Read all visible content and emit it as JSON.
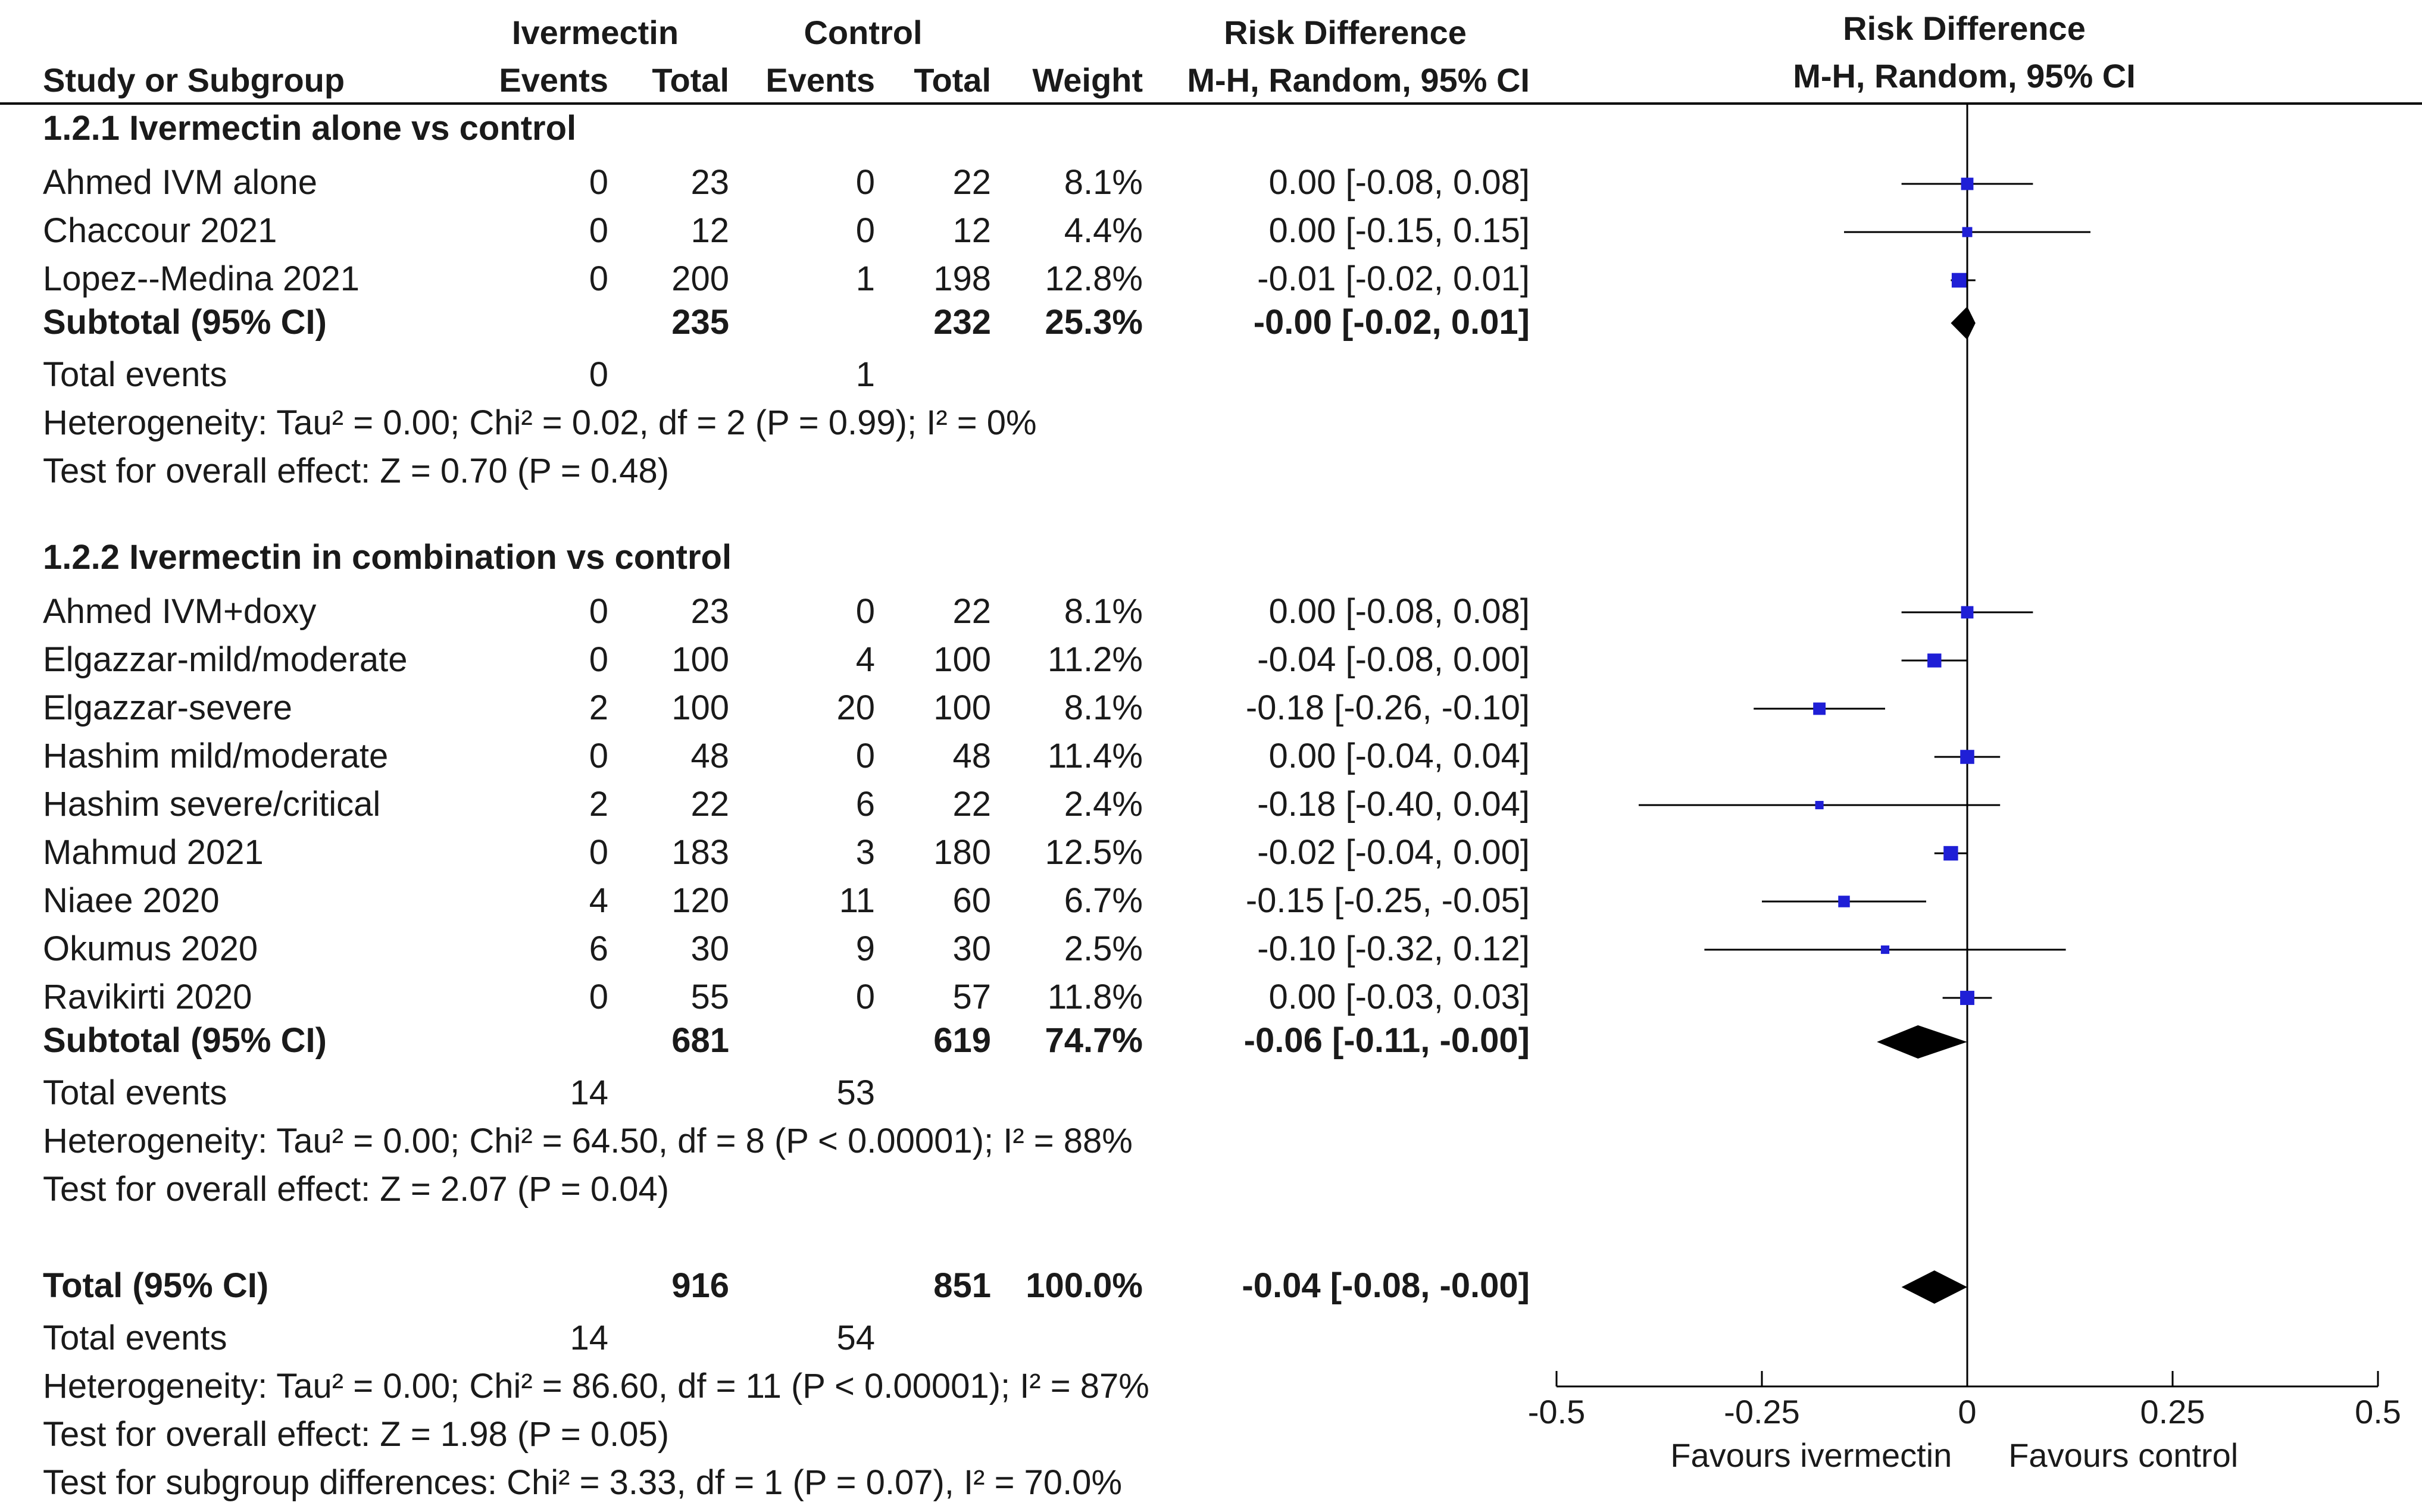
{
  "table": {
    "header": {
      "group1": "Ivermectin",
      "group2": "Control",
      "effect_col": "Risk Difference",
      "plot_col": "Risk Difference",
      "study_col": "Study or Subgroup",
      "events": "Events",
      "total": "Total",
      "weight": "Weight",
      "method": "M-H, Random, 95% CI",
      "plot_method": "M-H, Random, 95% CI"
    },
    "rows": [
      {
        "kind": "section",
        "label": "1.2.1 Ivermectin alone vs control"
      },
      {
        "kind": "study",
        "label": "Ahmed IVM alone",
        "e1": "0",
        "t1": "23",
        "e2": "0",
        "t2": "22",
        "w": "8.1%",
        "ci": "0.00 [-0.08, 0.08]"
      },
      {
        "kind": "study",
        "label": "Chaccour 2021",
        "e1": "0",
        "t1": "12",
        "e2": "0",
        "t2": "12",
        "w": "4.4%",
        "ci": "0.00 [-0.15, 0.15]"
      },
      {
        "kind": "study",
        "label": "Lopez--Medina 2021",
        "e1": "0",
        "t1": "200",
        "e2": "1",
        "t2": "198",
        "w": "12.8%",
        "ci": "-0.01 [-0.02, 0.01]"
      },
      {
        "kind": "subtotal",
        "label": "Subtotal (95% CI)",
        "e1": "",
        "t1": "235",
        "e2": "",
        "t2": "232",
        "w": "25.3%",
        "ci": "-0.00 [-0.02, 0.01]"
      },
      {
        "kind": "events",
        "label": "Total events",
        "e1": "0",
        "t1": "",
        "e2": "1",
        "t2": "",
        "w": "",
        "ci": ""
      },
      {
        "kind": "text",
        "label": "Heterogeneity: Tau² = 0.00; Chi² = 0.02, df = 2 (P = 0.99); I² = 0%"
      },
      {
        "kind": "text",
        "label": "Test for overall effect: Z = 0.70 (P = 0.48)"
      },
      {
        "kind": "section",
        "label": "1.2.2 Ivermectin in combination vs control"
      },
      {
        "kind": "study",
        "label": "Ahmed IVM+doxy",
        "e1": "0",
        "t1": "23",
        "e2": "0",
        "t2": "22",
        "w": "8.1%",
        "ci": "0.00 [-0.08, 0.08]"
      },
      {
        "kind": "study",
        "label": "Elgazzar-mild/moderate",
        "e1": "0",
        "t1": "100",
        "e2": "4",
        "t2": "100",
        "w": "11.2%",
        "ci": "-0.04 [-0.08, 0.00]"
      },
      {
        "kind": "study",
        "label": "Elgazzar-severe",
        "e1": "2",
        "t1": "100",
        "e2": "20",
        "t2": "100",
        "w": "8.1%",
        "ci": "-0.18 [-0.26, -0.10]"
      },
      {
        "kind": "study",
        "label": "Hashim mild/moderate",
        "e1": "0",
        "t1": "48",
        "e2": "0",
        "t2": "48",
        "w": "11.4%",
        "ci": "0.00 [-0.04, 0.04]"
      },
      {
        "kind": "study",
        "label": "Hashim severe/critical",
        "e1": "2",
        "t1": "22",
        "e2": "6",
        "t2": "22",
        "w": "2.4%",
        "ci": "-0.18 [-0.40, 0.04]"
      },
      {
        "kind": "study",
        "label": "Mahmud 2021",
        "e1": "0",
        "t1": "183",
        "e2": "3",
        "t2": "180",
        "w": "12.5%",
        "ci": "-0.02 [-0.04, 0.00]"
      },
      {
        "kind": "study",
        "label": "Niaee 2020",
        "e1": "4",
        "t1": "120",
        "e2": "11",
        "t2": "60",
        "w": "6.7%",
        "ci": "-0.15 [-0.25, -0.05]"
      },
      {
        "kind": "study",
        "label": "Okumus 2020",
        "e1": "6",
        "t1": "30",
        "e2": "9",
        "t2": "30",
        "w": "2.5%",
        "ci": "-0.10 [-0.32, 0.12]"
      },
      {
        "kind": "study",
        "label": "Ravikirti 2020",
        "e1": "0",
        "t1": "55",
        "e2": "0",
        "t2": "57",
        "w": "11.8%",
        "ci": "0.00 [-0.03, 0.03]"
      },
      {
        "kind": "subtotal",
        "label": "Subtotal (95% CI)",
        "e1": "",
        "t1": "681",
        "e2": "",
        "t2": "619",
        "w": "74.7%",
        "ci": "-0.06 [-0.11, -0.00]"
      },
      {
        "kind": "events",
        "label": "Total events",
        "e1": "14",
        "t1": "",
        "e2": "53",
        "t2": "",
        "w": "",
        "ci": ""
      },
      {
        "kind": "text",
        "label": "Heterogeneity: Tau² = 0.00; Chi² = 64.50, df = 8 (P < 0.00001); I² = 88%"
      },
      {
        "kind": "text",
        "label": "Test for overall effect: Z = 2.07 (P = 0.04)"
      },
      {
        "kind": "subtotal",
        "label": "Total (95% CI)",
        "e1": "",
        "t1": "916",
        "e2": "",
        "t2": "851",
        "w": "100.0%",
        "ci": "-0.04 [-0.08, -0.00]"
      },
      {
        "kind": "events",
        "label": "Total events",
        "e1": "14",
        "t1": "",
        "e2": "54",
        "t2": "",
        "w": "",
        "ci": ""
      },
      {
        "kind": "text",
        "label": "Heterogeneity: Tau² = 0.00; Chi² = 86.60, df = 11 (P < 0.00001); I² = 87%"
      },
      {
        "kind": "text",
        "label": "Test for overall effect: Z = 1.98 (P = 0.05)"
      },
      {
        "kind": "text",
        "label": "Test for subgroup differences: Chi² = 3.33, df = 1 (P = 0.07), I² = 70.0%"
      }
    ]
  },
  "chart_data": {
    "type": "forest",
    "title": "Risk Difference",
    "method": "M-H, Random, 95% CI",
    "xlim": [
      -0.5,
      0.5
    ],
    "xticks": [
      -0.5,
      -0.25,
      0,
      0.25,
      0.5
    ],
    "xtick_labels": [
      "-0.5",
      "-0.25",
      "0",
      "0.25",
      "0.5"
    ],
    "xlabel_left": "Favours ivermectin",
    "xlabel_right": "Favours control",
    "studies": [
      {
        "name": "Ahmed IVM alone",
        "rd": 0.0,
        "lo": -0.08,
        "hi": 0.08,
        "weight": 8.1
      },
      {
        "name": "Chaccour 2021",
        "rd": 0.0,
        "lo": -0.15,
        "hi": 0.15,
        "weight": 4.4
      },
      {
        "name": "Lopez--Medina 2021",
        "rd": -0.01,
        "lo": -0.02,
        "hi": 0.01,
        "weight": 12.8
      },
      {
        "name": "Ahmed IVM+doxy",
        "rd": 0.0,
        "lo": -0.08,
        "hi": 0.08,
        "weight": 8.1
      },
      {
        "name": "Elgazzar-mild/moderate",
        "rd": -0.04,
        "lo": -0.08,
        "hi": 0.0,
        "weight": 11.2
      },
      {
        "name": "Elgazzar-severe",
        "rd": -0.18,
        "lo": -0.26,
        "hi": -0.1,
        "weight": 8.1
      },
      {
        "name": "Hashim mild/moderate",
        "rd": 0.0,
        "lo": -0.04,
        "hi": 0.04,
        "weight": 11.4
      },
      {
        "name": "Hashim severe/critical",
        "rd": -0.18,
        "lo": -0.4,
        "hi": 0.04,
        "weight": 2.4
      },
      {
        "name": "Mahmud 2021",
        "rd": -0.02,
        "lo": -0.04,
        "hi": 0.0,
        "weight": 12.5
      },
      {
        "name": "Niaee 2020",
        "rd": -0.15,
        "lo": -0.25,
        "hi": -0.05,
        "weight": 6.7
      },
      {
        "name": "Okumus 2020",
        "rd": -0.1,
        "lo": -0.32,
        "hi": 0.12,
        "weight": 2.5
      },
      {
        "name": "Ravikirti 2020",
        "rd": 0.0,
        "lo": -0.03,
        "hi": 0.03,
        "weight": 11.8
      }
    ],
    "pooled": [
      {
        "name": "Subtotal 1.2.1",
        "rd": -0.0,
        "lo": -0.02,
        "hi": 0.01
      },
      {
        "name": "Subtotal 1.2.2",
        "rd": -0.06,
        "lo": -0.11,
        "hi": -0.0
      },
      {
        "name": "Total",
        "rd": -0.04,
        "lo": -0.08,
        "hi": -0.0
      }
    ],
    "colors": {
      "marker": "#1f1fd6",
      "line": "#000000",
      "diamond": "#000000"
    }
  }
}
